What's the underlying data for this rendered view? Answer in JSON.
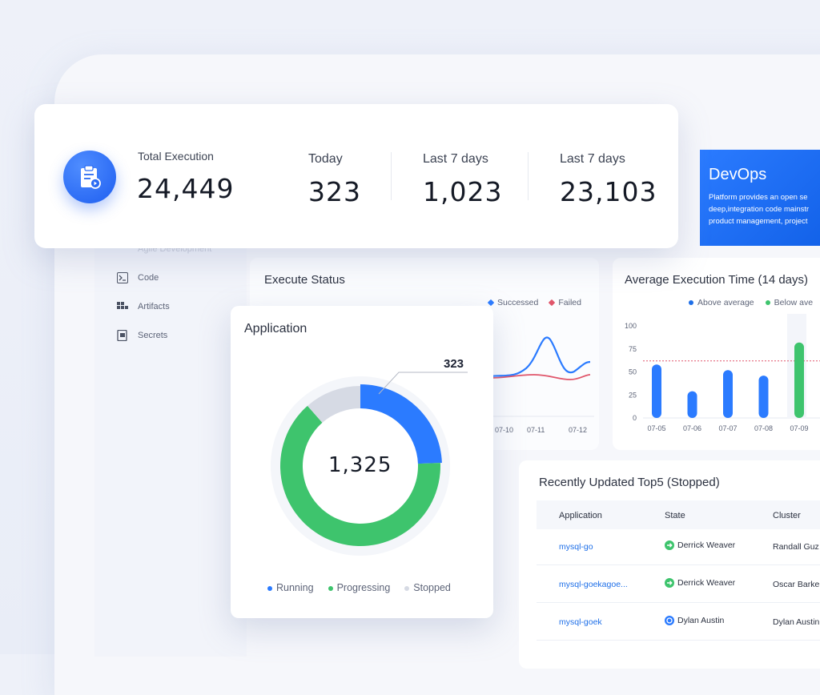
{
  "stats": {
    "total_label": "Total Execution",
    "total_value": "24,449",
    "today_label": "Today",
    "today_value": "323",
    "last7_label": "Last 7 days",
    "last7_value": "1,023",
    "last7b_label": "Last 7 days",
    "last7b_value": "23,103"
  },
  "banner": {
    "title": "DevOps",
    "line1": "Platform provides an open se",
    "line2": "deep,integration code mainstr",
    "line3": "product management, project"
  },
  "sidebar": {
    "items": [
      {
        "label": "Agile Development"
      },
      {
        "label": "Code"
      },
      {
        "label": "Artifacts"
      },
      {
        "label": "Secrets"
      }
    ]
  },
  "execute_status": {
    "title": "Execute Status",
    "legend": [
      "Successed",
      "Failed"
    ],
    "x_ticks": [
      "07-10",
      "07-11",
      "07-12"
    ]
  },
  "average_time": {
    "title": "Average Execution Time (14 days)",
    "legend": [
      "Above average",
      "Below ave"
    ]
  },
  "application": {
    "title": "Application",
    "center_value": "1,325",
    "callout_value": "323",
    "legend": [
      "Running",
      "Progressing",
      "Stopped"
    ]
  },
  "recent": {
    "title": "Recently Updated Top5 (Stopped)",
    "headers": [
      "Application",
      "State",
      "Cluster"
    ],
    "rows": [
      {
        "app": "mysql-go",
        "state": "Derrick Weaver",
        "cluster": "Randall Guz"
      },
      {
        "app": "mysql-goekagoe...",
        "state": "Derrick Weaver",
        "cluster": "Oscar Barke"
      },
      {
        "app": "mysql-goek",
        "state": "Dylan Austin",
        "cluster": "Dylan Austin"
      }
    ]
  },
  "colors": {
    "accent": "#2b7bff",
    "success": "#3ec46d",
    "failed": "#e0566b",
    "stopped": "#d6dae4"
  },
  "chart_data": [
    {
      "type": "pie",
      "title": "Application",
      "labels": [
        "Running",
        "Progressing",
        "Stopped"
      ],
      "values": [
        323,
        850,
        152
      ]
    },
    {
      "type": "bar",
      "title": "Average Execution Time (14 days)",
      "categories": [
        "07-05",
        "07-06",
        "07-07",
        "07-08",
        "07-09"
      ],
      "series": [
        {
          "name": "Above average",
          "values": [
            58,
            null,
            52,
            46,
            null
          ]
        },
        {
          "name": "Below ave",
          "values": [
            null,
            null,
            null,
            null,
            82
          ]
        }
      ],
      "extra_values": {
        "07-06": 29
      },
      "values": [
        58,
        29,
        52,
        46,
        82
      ],
      "ylim": [
        0,
        100
      ],
      "y_ticks": [
        0,
        25,
        50,
        75,
        100
      ],
      "average_line": 62
    },
    {
      "type": "line",
      "title": "Execute Status",
      "x": [
        "07-10",
        "07-11",
        "07-12"
      ],
      "series": [
        {
          "name": "Successed",
          "values": [
            20,
            55,
            32
          ]
        },
        {
          "name": "Failed",
          "values": [
            22,
            24,
            22
          ]
        }
      ]
    }
  ]
}
